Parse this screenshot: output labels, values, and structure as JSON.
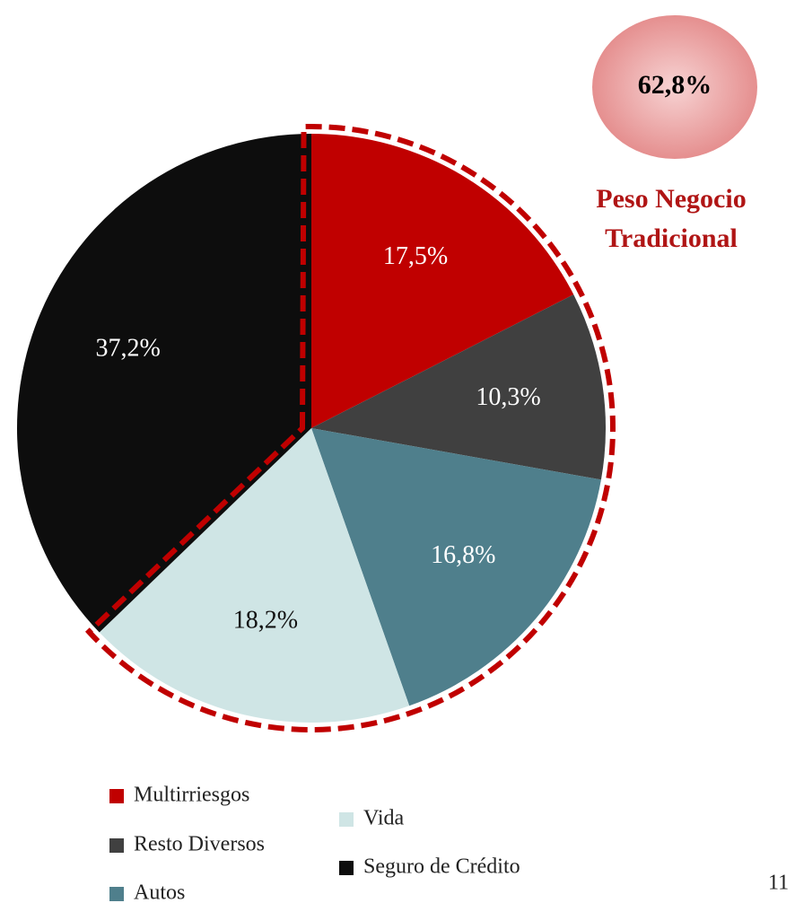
{
  "chart_data": {
    "type": "pie",
    "categories": [
      "Multirriesgos",
      "Resto Diversos",
      "Autos",
      "Vida",
      "Seguro de Crédito"
    ],
    "values": [
      17.5,
      10.3,
      16.8,
      18.2,
      37.2
    ],
    "value_labels": [
      "17,5%",
      "10,3%",
      "16,8%",
      "18,2%",
      "37,2%"
    ],
    "colors": [
      "#c00000",
      "#404040",
      "#4f7f8c",
      "#cfe5e5",
      "#0d0d0d"
    ],
    "highlight": {
      "value": 62.8,
      "label": "62,8%"
    },
    "highlight_text": [
      "Peso Negocio",
      "Tradicional"
    ],
    "page_number": "11"
  }
}
